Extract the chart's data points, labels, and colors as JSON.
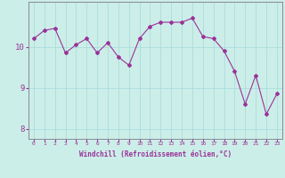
{
  "x": [
    0,
    1,
    2,
    3,
    4,
    5,
    6,
    7,
    8,
    9,
    10,
    11,
    12,
    13,
    14,
    15,
    16,
    17,
    18,
    19,
    20,
    21,
    22,
    23
  ],
  "y": [
    10.2,
    10.4,
    10.45,
    9.85,
    10.05,
    10.2,
    9.85,
    10.1,
    9.75,
    9.55,
    10.2,
    10.5,
    10.6,
    10.6,
    10.6,
    10.7,
    10.25,
    10.2,
    9.9,
    9.4,
    8.6,
    9.3,
    8.35,
    8.85
  ],
  "line_color": "#993399",
  "marker": "D",
  "marker_size": 2.0,
  "bg_color": "#cceee8",
  "grid_color": "#aadddd",
  "xlabel": "Windchill (Refroidissement éolien,°C)",
  "ylim": [
    7.75,
    11.1
  ],
  "xlim": [
    -0.5,
    23.5
  ],
  "yticks": [
    8,
    9,
    10
  ],
  "xticks": [
    0,
    1,
    2,
    3,
    4,
    5,
    6,
    7,
    8,
    9,
    10,
    11,
    12,
    13,
    14,
    15,
    16,
    17,
    18,
    19,
    20,
    21,
    22,
    23
  ],
  "tick_color": "#993399",
  "label_color": "#993399",
  "spine_color": "#888899"
}
